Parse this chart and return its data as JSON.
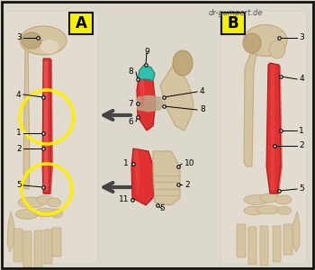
{
  "bg_color": "#ddd8cc",
  "border_color": "#111111",
  "watermark": "dr-gumpert.de",
  "panel_A": "A",
  "panel_B": "B",
  "label_yellow": "#f5f000",
  "bone_light": "#d4c4a0",
  "bone_mid": "#c0a87a",
  "bone_dark": "#a89060",
  "bone_shadow": "#907850",
  "skin_light": "#ece4d8",
  "red_bright": "#e03030",
  "red_dark": "#aa1818",
  "red_mid": "#cc2222",
  "teal": "#30c0b0",
  "teal_dark": "#208070",
  "yellow_circle": "#ffee00",
  "arrow_dark": "#444444",
  "arrow_light": "#888888",
  "white_ish": "#f0ece4",
  "fibrous": "#b8a888"
}
